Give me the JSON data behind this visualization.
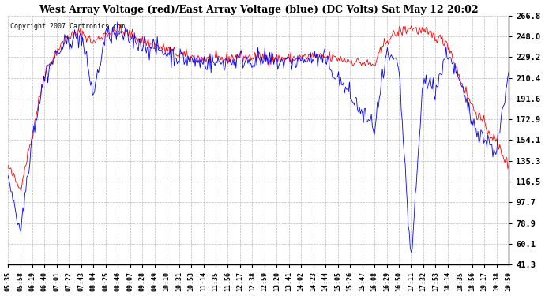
{
  "title": "West Array Voltage (red)/East Array Voltage (blue) (DC Volts) Sat May 12 20:02",
  "copyright": "Copyright 2007 Cartronics.com",
  "yticks": [
    41.3,
    60.1,
    78.9,
    97.7,
    116.5,
    135.3,
    154.1,
    172.9,
    191.6,
    210.4,
    229.2,
    248.0,
    266.8
  ],
  "ylim": [
    41.3,
    266.8
  ],
  "bg_color": "#ffffff",
  "grid_color": "#bbbbbb",
  "line_red": "#ff0000",
  "line_blue": "#0000ff",
  "xtick_labels": [
    "05:35",
    "05:58",
    "06:19",
    "06:40",
    "07:01",
    "07:22",
    "07:43",
    "08:04",
    "08:25",
    "08:46",
    "09:07",
    "09:28",
    "09:49",
    "10:10",
    "10:31",
    "10:53",
    "11:14",
    "11:35",
    "11:56",
    "12:17",
    "12:38",
    "12:59",
    "13:20",
    "13:41",
    "14:02",
    "14:23",
    "14:44",
    "15:05",
    "15:26",
    "15:47",
    "16:08",
    "16:29",
    "16:50",
    "17:11",
    "17:32",
    "17:53",
    "18:14",
    "18:35",
    "18:56",
    "19:17",
    "19:38",
    "19:59"
  ],
  "red_values": [
    130,
    110,
    160,
    215,
    235,
    248,
    252,
    242,
    251,
    253,
    250,
    244,
    240,
    236,
    232,
    229,
    228,
    227,
    228,
    230,
    229,
    229,
    228,
    228,
    229,
    230,
    229,
    228,
    226,
    224,
    222,
    245,
    252,
    256,
    252,
    248,
    242,
    210,
    185,
    168,
    152,
    130
  ],
  "blue_values": [
    125,
    70,
    158,
    212,
    232,
    245,
    248,
    195,
    249,
    250,
    246,
    241,
    237,
    233,
    229,
    226,
    225,
    224,
    225,
    228,
    226,
    226,
    225,
    225,
    226,
    228,
    226,
    210,
    195,
    178,
    165,
    230,
    220,
    41,
    210,
    200,
    235,
    205,
    172,
    155,
    145,
    213
  ],
  "fig_width": 6.9,
  "fig_height": 3.75,
  "dpi": 100
}
